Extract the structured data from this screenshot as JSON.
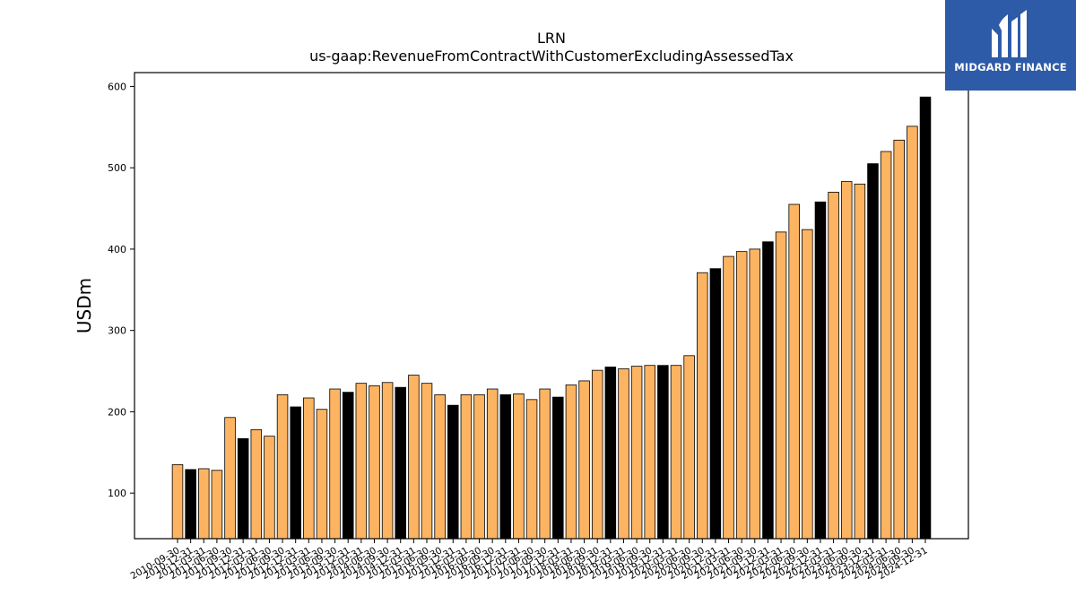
{
  "logo": {
    "text": "MIDGARD FINANCE",
    "background": "#2E5BA8"
  },
  "chart_data": {
    "type": "bar",
    "title": "LRN",
    "subtitle": "us-gaap:RevenueFromContractWithCustomerExcludingAssessedTax",
    "xlabel": "",
    "ylabel": "USDm",
    "ylim": [
      44,
      617
    ],
    "yticks": [
      100,
      200,
      300,
      400,
      500,
      600
    ],
    "grid": false,
    "colors": {
      "quarter": "#FDB462",
      "fiscal_year_end": "#000000",
      "edge": "#000000"
    },
    "categories": [
      "2010-09-30",
      "2010-12-31",
      "2011-03-31",
      "2011-06-30",
      "2011-09-30",
      "2011-12-31",
      "2012-03-31",
      "2012-06-30",
      "2012-09-30",
      "2012-12-31",
      "2013-03-31",
      "2013-06-30",
      "2013-09-30",
      "2013-12-31",
      "2014-03-31",
      "2014-06-30",
      "2014-09-30",
      "2014-12-31",
      "2015-03-31",
      "2015-06-30",
      "2015-09-30",
      "2015-12-31",
      "2016-03-31",
      "2016-06-30",
      "2016-09-30",
      "2016-12-31",
      "2017-03-31",
      "2017-06-30",
      "2017-09-30",
      "2017-12-31",
      "2018-03-31",
      "2018-06-30",
      "2018-09-30",
      "2018-12-31",
      "2019-03-31",
      "2019-06-30",
      "2019-09-30",
      "2019-12-31",
      "2020-03-31",
      "2020-06-30",
      "2020-09-30",
      "2020-12-31",
      "2021-03-31",
      "2021-06-30",
      "2021-09-30",
      "2021-12-31",
      "2022-03-31",
      "2022-06-30",
      "2022-09-30",
      "2022-12-31",
      "2023-03-31",
      "2023-06-30",
      "2023-09-30",
      "2023-12-31",
      "2024-03-31",
      "2024-06-30",
      "2024-09-30",
      "2024-12-31"
    ],
    "values": [
      135,
      129,
      130,
      128,
      193,
      167,
      178,
      170,
      221,
      206,
      217,
      203,
      228,
      224,
      235,
      232,
      236,
      230,
      245,
      235,
      221,
      208,
      221,
      221,
      228,
      221,
      222,
      215,
      228,
      218,
      233,
      238,
      251,
      255,
      253,
      256,
      257,
      257,
      257,
      269,
      371,
      376,
      391,
      397,
      400,
      409,
      421,
      455,
      424,
      458,
      470,
      483,
      480,
      505,
      520,
      534,
      551,
      587
    ],
    "highlight": [
      false,
      true,
      false,
      false,
      false,
      true,
      false,
      false,
      false,
      true,
      false,
      false,
      false,
      true,
      false,
      false,
      false,
      true,
      false,
      false,
      false,
      true,
      false,
      false,
      false,
      true,
      false,
      false,
      false,
      true,
      false,
      false,
      false,
      true,
      false,
      false,
      false,
      true,
      false,
      false,
      false,
      true,
      false,
      false,
      false,
      true,
      false,
      false,
      false,
      true,
      false,
      false,
      false,
      true,
      false,
      false,
      false,
      true
    ]
  }
}
